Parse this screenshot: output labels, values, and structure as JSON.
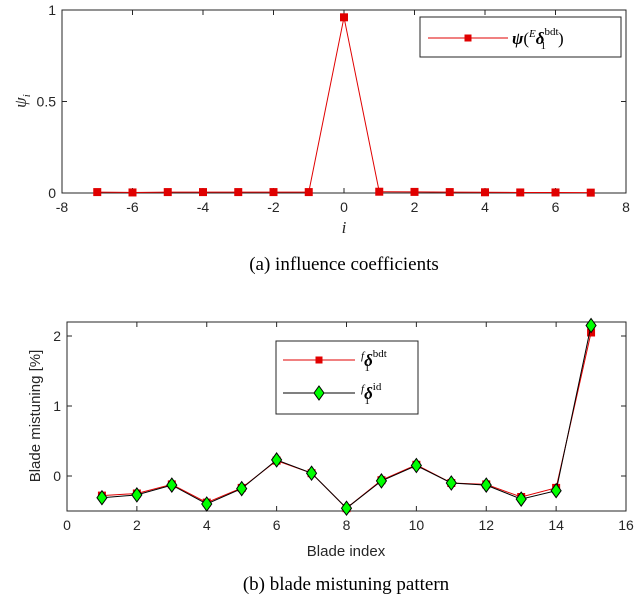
{
  "chart_data": [
    {
      "type": "line",
      "xlabel": "i",
      "ylabel": "ψi",
      "caption": "(a) influence coefficients",
      "xlim": [
        -8,
        8
      ],
      "ylim": [
        0,
        1
      ],
      "xticks": [
        "-8",
        "-6",
        "-4",
        "-2",
        "0",
        "2",
        "4",
        "6",
        "8"
      ],
      "yticks": [
        "0",
        "0.5",
        "1"
      ],
      "legend_position": "top-right",
      "series": [
        {
          "name": "ψ(Eδ1bdt)",
          "legend_parts": {
            "sym": "ψ",
            "open": "(",
            "pre": "E",
            "main": "δ",
            "sub": "1",
            "sup": "bdt",
            "close": ")"
          },
          "color": "#e00000",
          "marker": "square",
          "x": [
            -7,
            -6,
            -5,
            -4,
            -3,
            -2,
            -1,
            0,
            1,
            2,
            3,
            4,
            5,
            6,
            7
          ],
          "y": [
            0.005,
            0.003,
            0.005,
            0.005,
            0.005,
            0.005,
            0.005,
            0.96,
            0.007,
            0.006,
            0.005,
            0.004,
            0.003,
            0.003,
            0.002
          ]
        }
      ]
    },
    {
      "type": "line",
      "xlabel": "Blade index",
      "ylabel": "Blade mistuning [%]",
      "caption": "(b) blade mistuning pattern",
      "xlim": [
        0,
        16
      ],
      "ylim": [
        -0.5,
        2.2
      ],
      "xticks": [
        "0",
        "2",
        "4",
        "6",
        "8",
        "10",
        "12",
        "14",
        "16"
      ],
      "yticks": [
        "0",
        "1",
        "2"
      ],
      "legend_position": "top-center",
      "series": [
        {
          "name": "fδ1bdt",
          "legend_parts": {
            "pre": "f",
            "main": "δ",
            "sub": "1",
            "sup": "bdt"
          },
          "color": "#e00000",
          "marker": "square",
          "x": [
            1,
            2,
            3,
            4,
            5,
            6,
            7,
            8,
            9,
            10,
            11,
            12,
            13,
            14,
            15
          ],
          "y": [
            -0.28,
            -0.25,
            -0.12,
            -0.38,
            -0.17,
            0.22,
            0.04,
            -0.46,
            -0.06,
            0.16,
            -0.1,
            -0.12,
            -0.3,
            -0.17,
            2.05
          ]
        },
        {
          "name": "fδ1id",
          "legend_parts": {
            "pre": "f",
            "main": "δ",
            "sub": "1",
            "sup": "id"
          },
          "color": "#000000",
          "marker_fill": "#00ff00",
          "marker": "diamond",
          "x": [
            1,
            2,
            3,
            4,
            5,
            6,
            7,
            8,
            9,
            10,
            11,
            12,
            13,
            14,
            15
          ],
          "y": [
            -0.31,
            -0.27,
            -0.13,
            -0.4,
            -0.18,
            0.23,
            0.04,
            -0.46,
            -0.07,
            0.15,
            -0.1,
            -0.13,
            -0.33,
            -0.21,
            2.15
          ]
        }
      ]
    }
  ]
}
